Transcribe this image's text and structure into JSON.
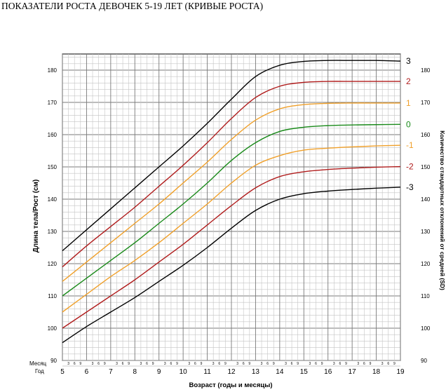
{
  "title": "ПОКАЗАТЕЛИ РОСТА ДЕВОЧЕК 5-19 ЛЕТ (КРИВЫЕ РОСТА)",
  "chart_data": {
    "type": "line",
    "title": "ПОКАЗАТЕЛИ РОСТА ДЕВОЧЕК 5-19 ЛЕТ (КРИВЫЕ РОСТА)",
    "xlabel": "Возраст (годы и месяцы)",
    "ylabel": "Длина тела/Рост (см)",
    "ylabel_right": "Количество стандартных отклонений от средней (SD)",
    "row_label_month": "Месяц",
    "row_label_year": "Год",
    "xlim": [
      5,
      19
    ],
    "ylim": [
      90,
      185
    ],
    "x_ticks": [
      "5",
      "6",
      "7",
      "8",
      "9",
      "10",
      "11",
      "12",
      "13",
      "14",
      "15",
      "16",
      "17",
      "18",
      "19"
    ],
    "month_ticks": [
      "3",
      "6",
      "9"
    ],
    "y_ticks": [
      "90",
      "100",
      "110",
      "120",
      "130",
      "140",
      "150",
      "160",
      "170",
      "180"
    ],
    "grid": true,
    "series": [
      {
        "name": "3",
        "color": "#000000",
        "x": [
          5,
          6,
          7,
          8,
          9,
          10,
          11,
          12,
          13,
          14,
          15,
          16,
          17,
          18,
          19
        ],
        "y": [
          124,
          130.5,
          137,
          143.5,
          150,
          156.5,
          163.5,
          171,
          178,
          181.5,
          182.7,
          183,
          183,
          183,
          182.8
        ]
      },
      {
        "name": "2",
        "color": "#b01c1c",
        "x": [
          5,
          6,
          7,
          8,
          9,
          10,
          11,
          12,
          13,
          14,
          15,
          16,
          17,
          18,
          19
        ],
        "y": [
          119,
          125.5,
          131.5,
          137.5,
          144,
          150.5,
          157.5,
          165,
          171.5,
          175,
          176.2,
          176.5,
          176.5,
          176.5,
          176.5
        ]
      },
      {
        "name": "1",
        "color": "#f0a02a",
        "x": [
          5,
          6,
          7,
          8,
          9,
          10,
          11,
          12,
          13,
          14,
          15,
          16,
          17,
          18,
          19
        ],
        "y": [
          114.5,
          120.5,
          126.5,
          132.5,
          138.5,
          145,
          151.5,
          158.5,
          164.5,
          168,
          169.3,
          169.7,
          169.8,
          169.8,
          169.8
        ]
      },
      {
        "name": "0",
        "color": "#1a8a1a",
        "x": [
          5,
          6,
          7,
          8,
          9,
          10,
          11,
          12,
          13,
          14,
          15,
          16,
          17,
          18,
          19
        ],
        "y": [
          110,
          115.5,
          121,
          126.5,
          132.5,
          138.5,
          145,
          152,
          157.5,
          161,
          162.3,
          162.8,
          163,
          163.1,
          163.2
        ]
      },
      {
        "name": "-1",
        "color": "#f0a02a",
        "x": [
          5,
          6,
          7,
          8,
          9,
          10,
          11,
          12,
          13,
          14,
          15,
          16,
          17,
          18,
          19
        ],
        "y": [
          105,
          110.5,
          116,
          121,
          126.5,
          132.5,
          138.5,
          145,
          150.5,
          153.5,
          155.2,
          155.8,
          156.2,
          156.5,
          156.7
        ]
      },
      {
        "name": "-2",
        "color": "#b01c1c",
        "x": [
          5,
          6,
          7,
          8,
          9,
          10,
          11,
          12,
          13,
          14,
          15,
          16,
          17,
          18,
          19
        ],
        "y": [
          100,
          105,
          110,
          115,
          120.5,
          126,
          132,
          138,
          143.5,
          147,
          148.5,
          149.2,
          149.6,
          149.9,
          150.1
        ]
      },
      {
        "name": "-3",
        "color": "#000000",
        "x": [
          5,
          6,
          7,
          8,
          9,
          10,
          11,
          12,
          13,
          14,
          15,
          16,
          17,
          18,
          19
        ],
        "y": [
          95.5,
          100.5,
          105,
          109.5,
          114.5,
          119.5,
          125,
          131,
          136.5,
          140,
          141.7,
          142.5,
          143,
          143.4,
          143.7
        ]
      }
    ]
  }
}
